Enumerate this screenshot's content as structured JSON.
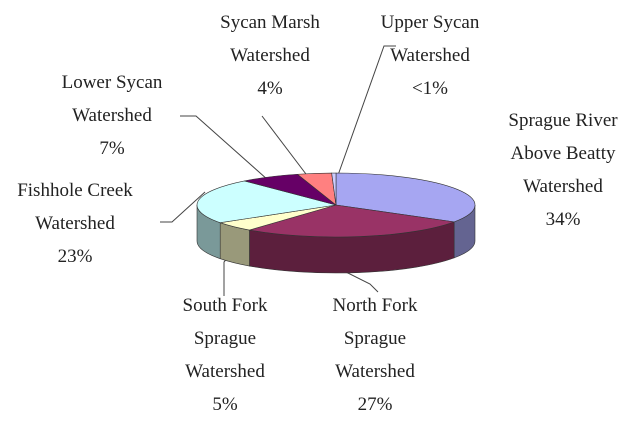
{
  "chart_data": {
    "type": "pie3d",
    "categories": [
      "Sprague River Above Beatty Watershed",
      "North Fork Sprague Watershed",
      "South Fork Sprague Watershed",
      "Fishhole Creek Watershed",
      "Lower Sycan Watershed",
      "Sycan Marsh Watershed",
      "Upper Sycan Watershed"
    ],
    "values": [
      34,
      27,
      5,
      23,
      7,
      4,
      0.5
    ],
    "value_labels": [
      "34%",
      "27%",
      "5%",
      "23%",
      "7%",
      "4%",
      "<1%"
    ],
    "colors": [
      "#a6a6f2",
      "#993366",
      "#ffffcc",
      "#ccffff",
      "#660066",
      "#ff8080",
      "#ccccff"
    ]
  }
}
